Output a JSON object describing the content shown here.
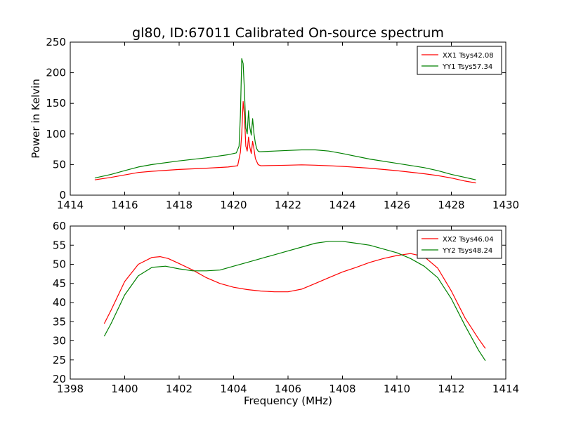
{
  "figure": {
    "title": "gl80, ID:67011 Calibrated On-source spectrum"
  },
  "colors": {
    "red": "#ff0000",
    "green": "#008000",
    "axes": "#000000"
  },
  "chart_data": [
    {
      "type": "line",
      "title": "gl80, ID:67011 Calibrated On-source spectrum",
      "xlabel": "",
      "ylabel": "Power in Kelvin",
      "xlim": [
        1414,
        1430
      ],
      "ylim": [
        0,
        250
      ],
      "xticks": [
        "1414",
        "1416",
        "1418",
        "1420",
        "1422",
        "1424",
        "1426",
        "1428",
        "1430"
      ],
      "yticks": [
        "0",
        "50",
        "100",
        "150",
        "200",
        "250"
      ],
      "legend_position": "top-right",
      "grid": false,
      "series": [
        {
          "name": "XX1 Tsys42.08",
          "color": "#ff0000",
          "x": [
            1414.9,
            1415.5,
            1416.0,
            1416.5,
            1417.0,
            1418.0,
            1419.0,
            1419.8,
            1420.15,
            1420.25,
            1420.3,
            1420.35,
            1420.4,
            1420.45,
            1420.5,
            1420.55,
            1420.6,
            1420.65,
            1420.7,
            1420.75,
            1420.8,
            1420.85,
            1420.9,
            1420.95,
            1421.0,
            1421.5,
            1422.0,
            1422.5,
            1423.0,
            1423.5,
            1424.0,
            1425.0,
            1426.0,
            1427.0,
            1427.5,
            1428.0,
            1428.5,
            1428.9
          ],
          "y": [
            25,
            29,
            33,
            37,
            39,
            42,
            44,
            46,
            48,
            70,
            100,
            153,
            130,
            80,
            72,
            95,
            78,
            68,
            88,
            75,
            60,
            55,
            50,
            49,
            48,
            48.5,
            49,
            49.5,
            49,
            48,
            47,
            44,
            40,
            35,
            32,
            28,
            23,
            20
          ]
        },
        {
          "name": "YY1 Tsys57.34",
          "color": "#008000",
          "x": [
            1414.9,
            1415.5,
            1416.0,
            1416.5,
            1417.0,
            1418.0,
            1419.0,
            1419.8,
            1420.1,
            1420.2,
            1420.25,
            1420.3,
            1420.35,
            1420.4,
            1420.45,
            1420.5,
            1420.55,
            1420.6,
            1420.65,
            1420.7,
            1420.75,
            1420.8,
            1420.85,
            1420.9,
            1420.95,
            1421.0,
            1421.5,
            1422.0,
            1422.5,
            1423.0,
            1423.5,
            1424.0,
            1425.0,
            1426.0,
            1427.0,
            1427.5,
            1428.0,
            1428.5,
            1428.9
          ],
          "y": [
            28,
            34,
            40,
            46,
            50,
            56,
            61,
            66,
            69,
            80,
            130,
            223,
            215,
            170,
            110,
            100,
            138,
            110,
            98,
            125,
            100,
            85,
            76,
            72,
            71,
            71,
            72,
            73,
            74,
            74,
            72,
            68,
            59,
            52,
            45,
            40,
            34,
            29,
            25
          ]
        }
      ]
    },
    {
      "type": "line",
      "title": "",
      "xlabel": "Frequency (MHz)",
      "ylabel": "",
      "xlim": [
        1398,
        1414
      ],
      "ylim": [
        20,
        60
      ],
      "xticks": [
        "1398",
        "1400",
        "1402",
        "1404",
        "1406",
        "1408",
        "1410",
        "1412",
        "1414"
      ],
      "yticks": [
        "20",
        "25",
        "30",
        "35",
        "40",
        "45",
        "50",
        "55",
        "60"
      ],
      "legend_position": "top-right",
      "grid": false,
      "series": [
        {
          "name": "XX2 Tsys46.04",
          "color": "#ff0000",
          "x": [
            1399.25,
            1399.5,
            1400.0,
            1400.5,
            1401.0,
            1401.3,
            1401.6,
            1402.0,
            1402.5,
            1403.0,
            1403.5,
            1404.0,
            1404.5,
            1405.0,
            1405.5,
            1406.0,
            1406.5,
            1407.0,
            1407.5,
            1408.0,
            1408.5,
            1409.0,
            1409.5,
            1410.0,
            1410.5,
            1411.0,
            1411.5,
            1412.0,
            1412.5,
            1413.0,
            1413.25
          ],
          "y": [
            34.5,
            38,
            45.5,
            50,
            51.8,
            52,
            51.5,
            50.2,
            48.5,
            46.5,
            45,
            44,
            43.4,
            43,
            42.8,
            42.8,
            43.5,
            45,
            46.5,
            48,
            49.2,
            50.5,
            51.5,
            52.3,
            52.8,
            52,
            49,
            43,
            36,
            30.5,
            28
          ]
        },
        {
          "name": "YY2 Tsys48.24",
          "color": "#008000",
          "x": [
            1399.25,
            1399.5,
            1400.0,
            1400.5,
            1401.0,
            1401.5,
            1402.0,
            1402.5,
            1403.0,
            1403.5,
            1404.0,
            1404.5,
            1405.0,
            1405.5,
            1406.0,
            1406.5,
            1407.0,
            1407.5,
            1408.0,
            1408.5,
            1409.0,
            1409.5,
            1410.0,
            1410.5,
            1411.0,
            1411.5,
            1412.0,
            1412.5,
            1413.0,
            1413.25
          ],
          "y": [
            31.2,
            34.5,
            42,
            47,
            49.2,
            49.5,
            48.8,
            48.3,
            48.3,
            48.5,
            49.5,
            50.5,
            51.5,
            52.5,
            53.5,
            54.5,
            55.5,
            56,
            56,
            55.5,
            55,
            54,
            53,
            51.5,
            49.5,
            46.5,
            41,
            34,
            27.5,
            24.8
          ]
        }
      ]
    }
  ]
}
